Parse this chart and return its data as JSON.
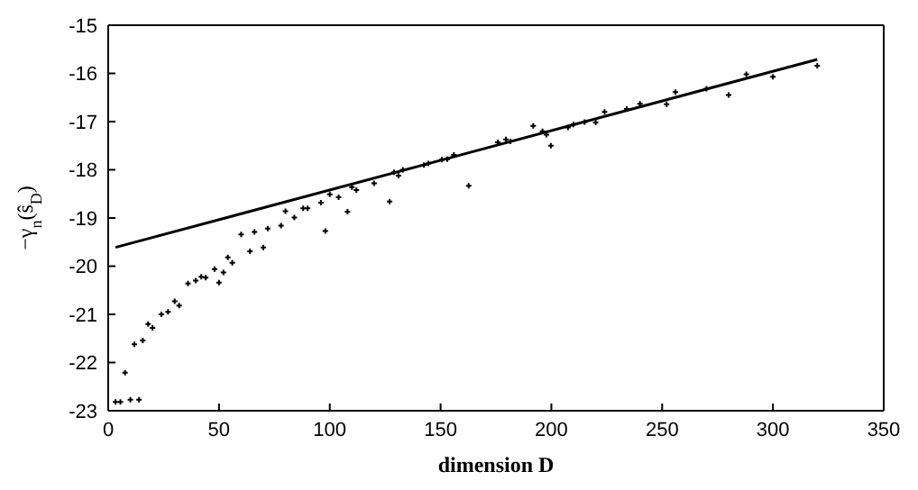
{
  "chart_data": {
    "type": "scatter",
    "xlabel": "dimension D",
    "ylabel": "−γ$_{n}$(ŝ$_{D}$)",
    "xlim": [
      0,
      350
    ],
    "xticks": [
      0,
      50,
      100,
      150,
      200,
      250,
      300,
      350
    ],
    "ylim": [
      -23,
      -15
    ],
    "yticks": [
      -23,
      -22,
      -21,
      -20,
      -19,
      -18,
      -17,
      -16,
      -15
    ],
    "grid": false,
    "legend": false,
    "series": [
      {
        "color": "#000000",
        "marker": "cross",
        "x": [
          3.3,
          5.5,
          7.6,
          10,
          11.8,
          13.9,
          15.6,
          18,
          20,
          24,
          27,
          30,
          32,
          36,
          39.5,
          42,
          44,
          48,
          50,
          52,
          54,
          56,
          60,
          64,
          66,
          70,
          72,
          78,
          80,
          84,
          88,
          90,
          96,
          98,
          100,
          104,
          108,
          110,
          112,
          120,
          127,
          129,
          131,
          133,
          142.5,
          144.5,
          150.6,
          153,
          156,
          162.7,
          175.8,
          179.5,
          181.5,
          191.8,
          196,
          197.8,
          199.8,
          207.5,
          210,
          215,
          220,
          224,
          234,
          240,
          252,
          256,
          270,
          280,
          288,
          300,
          320
        ],
        "values": [
          -22.82,
          -22.82,
          -22.21,
          -22.77,
          -21.62,
          -22.77,
          -21.54,
          -21.2,
          -21.28,
          -21.0,
          -20.95,
          -20.73,
          -20.82,
          -20.36,
          -20.3,
          -20.22,
          -20.24,
          -20.06,
          -20.34,
          -20.13,
          -19.82,
          -19.93,
          -19.34,
          -19.69,
          -19.29,
          -19.61,
          -19.22,
          -19.16,
          -18.86,
          -18.99,
          -18.8,
          -18.8,
          -18.68,
          -19.27,
          -18.51,
          -18.57,
          -18.87,
          -18.36,
          -18.42,
          -18.28,
          -18.66,
          -18.05,
          -18.12,
          -18.0,
          -17.9,
          -17.87,
          -17.79,
          -17.78,
          -17.69,
          -18.33,
          -17.43,
          -17.37,
          -17.41,
          -17.09,
          -17.2,
          -17.27,
          -17.5,
          -17.12,
          -17.06,
          -17.01,
          -17.02,
          -16.8,
          -16.74,
          -16.63,
          -16.64,
          -16.39,
          -16.32,
          -16.45,
          -16.02,
          -16.07,
          -15.84
        ]
      },
      {
        "type": "line",
        "color": "#000000",
        "marker": "none",
        "line_style": "solid",
        "x": [
          3.3,
          320
        ],
        "values": [
          -19.61,
          -15.71
        ]
      }
    ]
  }
}
